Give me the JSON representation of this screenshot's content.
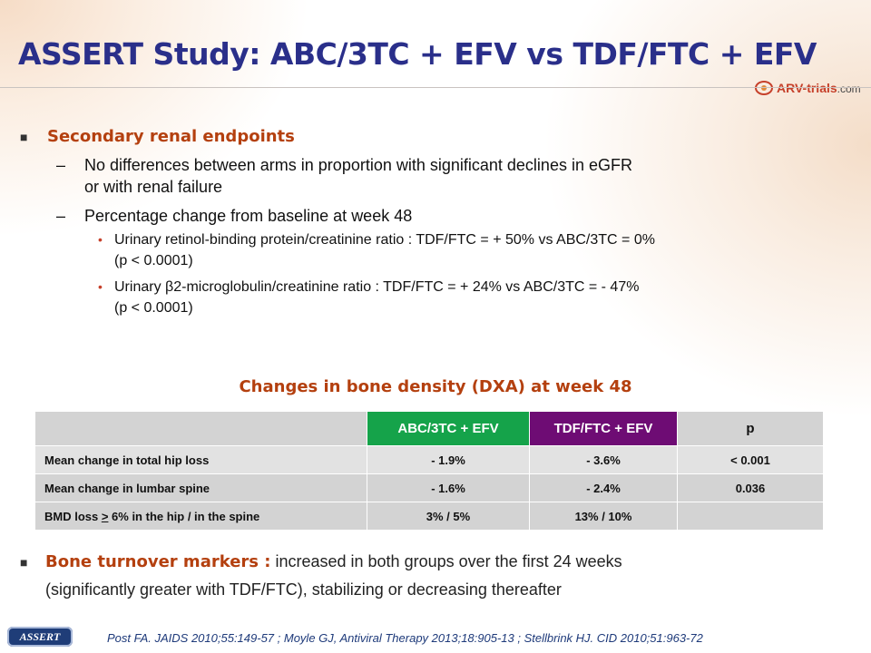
{
  "slide": {
    "title": "ASSERT Study: ABC/3TC + EFV vs TDF/FTC + EFV",
    "logo": {
      "name": "ARV-trials",
      "suffix": ".com"
    }
  },
  "renal": {
    "heading": "Secondary renal endpoints",
    "bullets": [
      {
        "dash": "–",
        "line1": "No differences between arms in proportion with significant declines in eGFR",
        "line2": "or with renal failure"
      },
      {
        "dash": "–",
        "line1": "Percentage change from baseline at week 48"
      }
    ],
    "sub_bullets": [
      {
        "line1": "Urinary retinol-binding protein/creatinine ratio : TDF/FTC = + 50% vs ABC/3TC = 0%",
        "line2": "(p < 0.0001)"
      },
      {
        "line1": "Urinary β2-microglobulin/creatinine ratio : TDF/FTC = + 24% vs ABC/3TC = - 47%",
        "line2": "(p < 0.0001)"
      }
    ]
  },
  "bone_table": {
    "title": "Changes in bone density (DXA) at week 48",
    "headers": [
      "",
      "ABC/3TC + EFV",
      "TDF/FTC + EFV",
      "p"
    ],
    "header_colors": {
      "abc": "#15a34a",
      "tdf": "#6e0c74"
    },
    "rows": [
      {
        "label": "Mean change in total hip loss",
        "abc": "- 1.9%",
        "tdf": "- 3.6%",
        "p": "< 0.001"
      },
      {
        "label": "Mean change in lumbar spine",
        "abc": "- 1.6%",
        "tdf": "- 2.4%",
        "p": "0.036"
      },
      {
        "label_pre": "BMD loss ",
        "label_ul": ">",
        "label_post": " 6% in the hip / in the spine",
        "abc": "3% / 5%",
        "tdf": "13% / 10%",
        "p": ""
      }
    ]
  },
  "turnover": {
    "heading": "Bone turnover markers :",
    "text1": " increased in both groups over the first 24 weeks",
    "text2": "(significantly greater with TDF/FTC), stabilizing or decreasing thereafter"
  },
  "footer": {
    "badge": "ASSERT",
    "references": "Post FA. JAIDS 2010;55:149-57 ; Moyle GJ, Antiviral Therapy 2013;18:905-13 ; Stellbrink HJ. CID 2010;51:963-72"
  },
  "colors": {
    "title": "#2a2f8a",
    "accent": "#b4400f",
    "table_cell": "#d3d3d3"
  }
}
